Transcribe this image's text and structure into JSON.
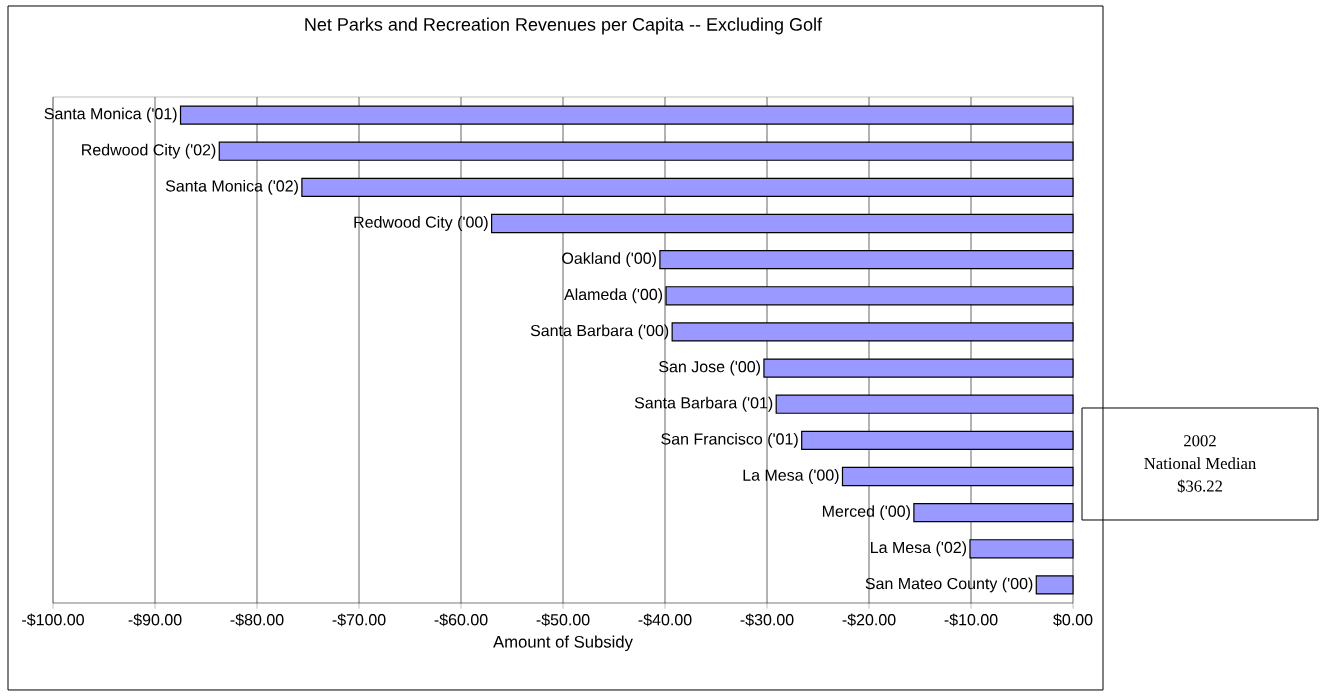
{
  "chart_data": {
    "type": "bar",
    "orientation": "horizontal",
    "title": "Net Parks and Recreation Revenues per Capita -- Excluding Golf",
    "xlabel": "Amount of Subsidy",
    "categories": [
      "Santa Monica ('01)",
      "Redwood City ('02)",
      "Santa Monica ('02)",
      "Redwood City ('00)",
      "Oakland ('00)",
      "Alameda ('00)",
      "Santa Barbara ('00)",
      "San Jose ('00)",
      "Santa Barbara ('01)",
      "San Francisco ('01)",
      "La Mesa ('00)",
      "Merced ('00)",
      "La Mesa ('02)",
      "San Mateo County ('00)"
    ],
    "values": [
      -87.5,
      -83.7,
      -75.6,
      -57.0,
      -40.5,
      -39.9,
      -39.3,
      -30.3,
      -29.1,
      -26.6,
      -22.6,
      -15.6,
      -10.1,
      -3.6
    ],
    "color": "#9999ff",
    "xlim": [
      -100,
      0
    ],
    "xticks": [
      {
        "value": -100,
        "label": "-$100.00"
      },
      {
        "value": -90,
        "label": "-$90.00"
      },
      {
        "value": -80,
        "label": "-$80.00"
      },
      {
        "value": -70,
        "label": "-$70.00"
      },
      {
        "value": -60,
        "label": "-$60.00"
      },
      {
        "value": -50,
        "label": "-$50.00"
      },
      {
        "value": -40,
        "label": "-$40.00"
      },
      {
        "value": -30,
        "label": "-$30.00"
      },
      {
        "value": -20,
        "label": "-$20.00"
      },
      {
        "value": -10,
        "label": "-$10.00"
      },
      {
        "value": 0,
        "label": "$0.00"
      }
    ],
    "grid": "x",
    "annotations": [
      "2002",
      "National Median",
      "$36.22"
    ]
  }
}
